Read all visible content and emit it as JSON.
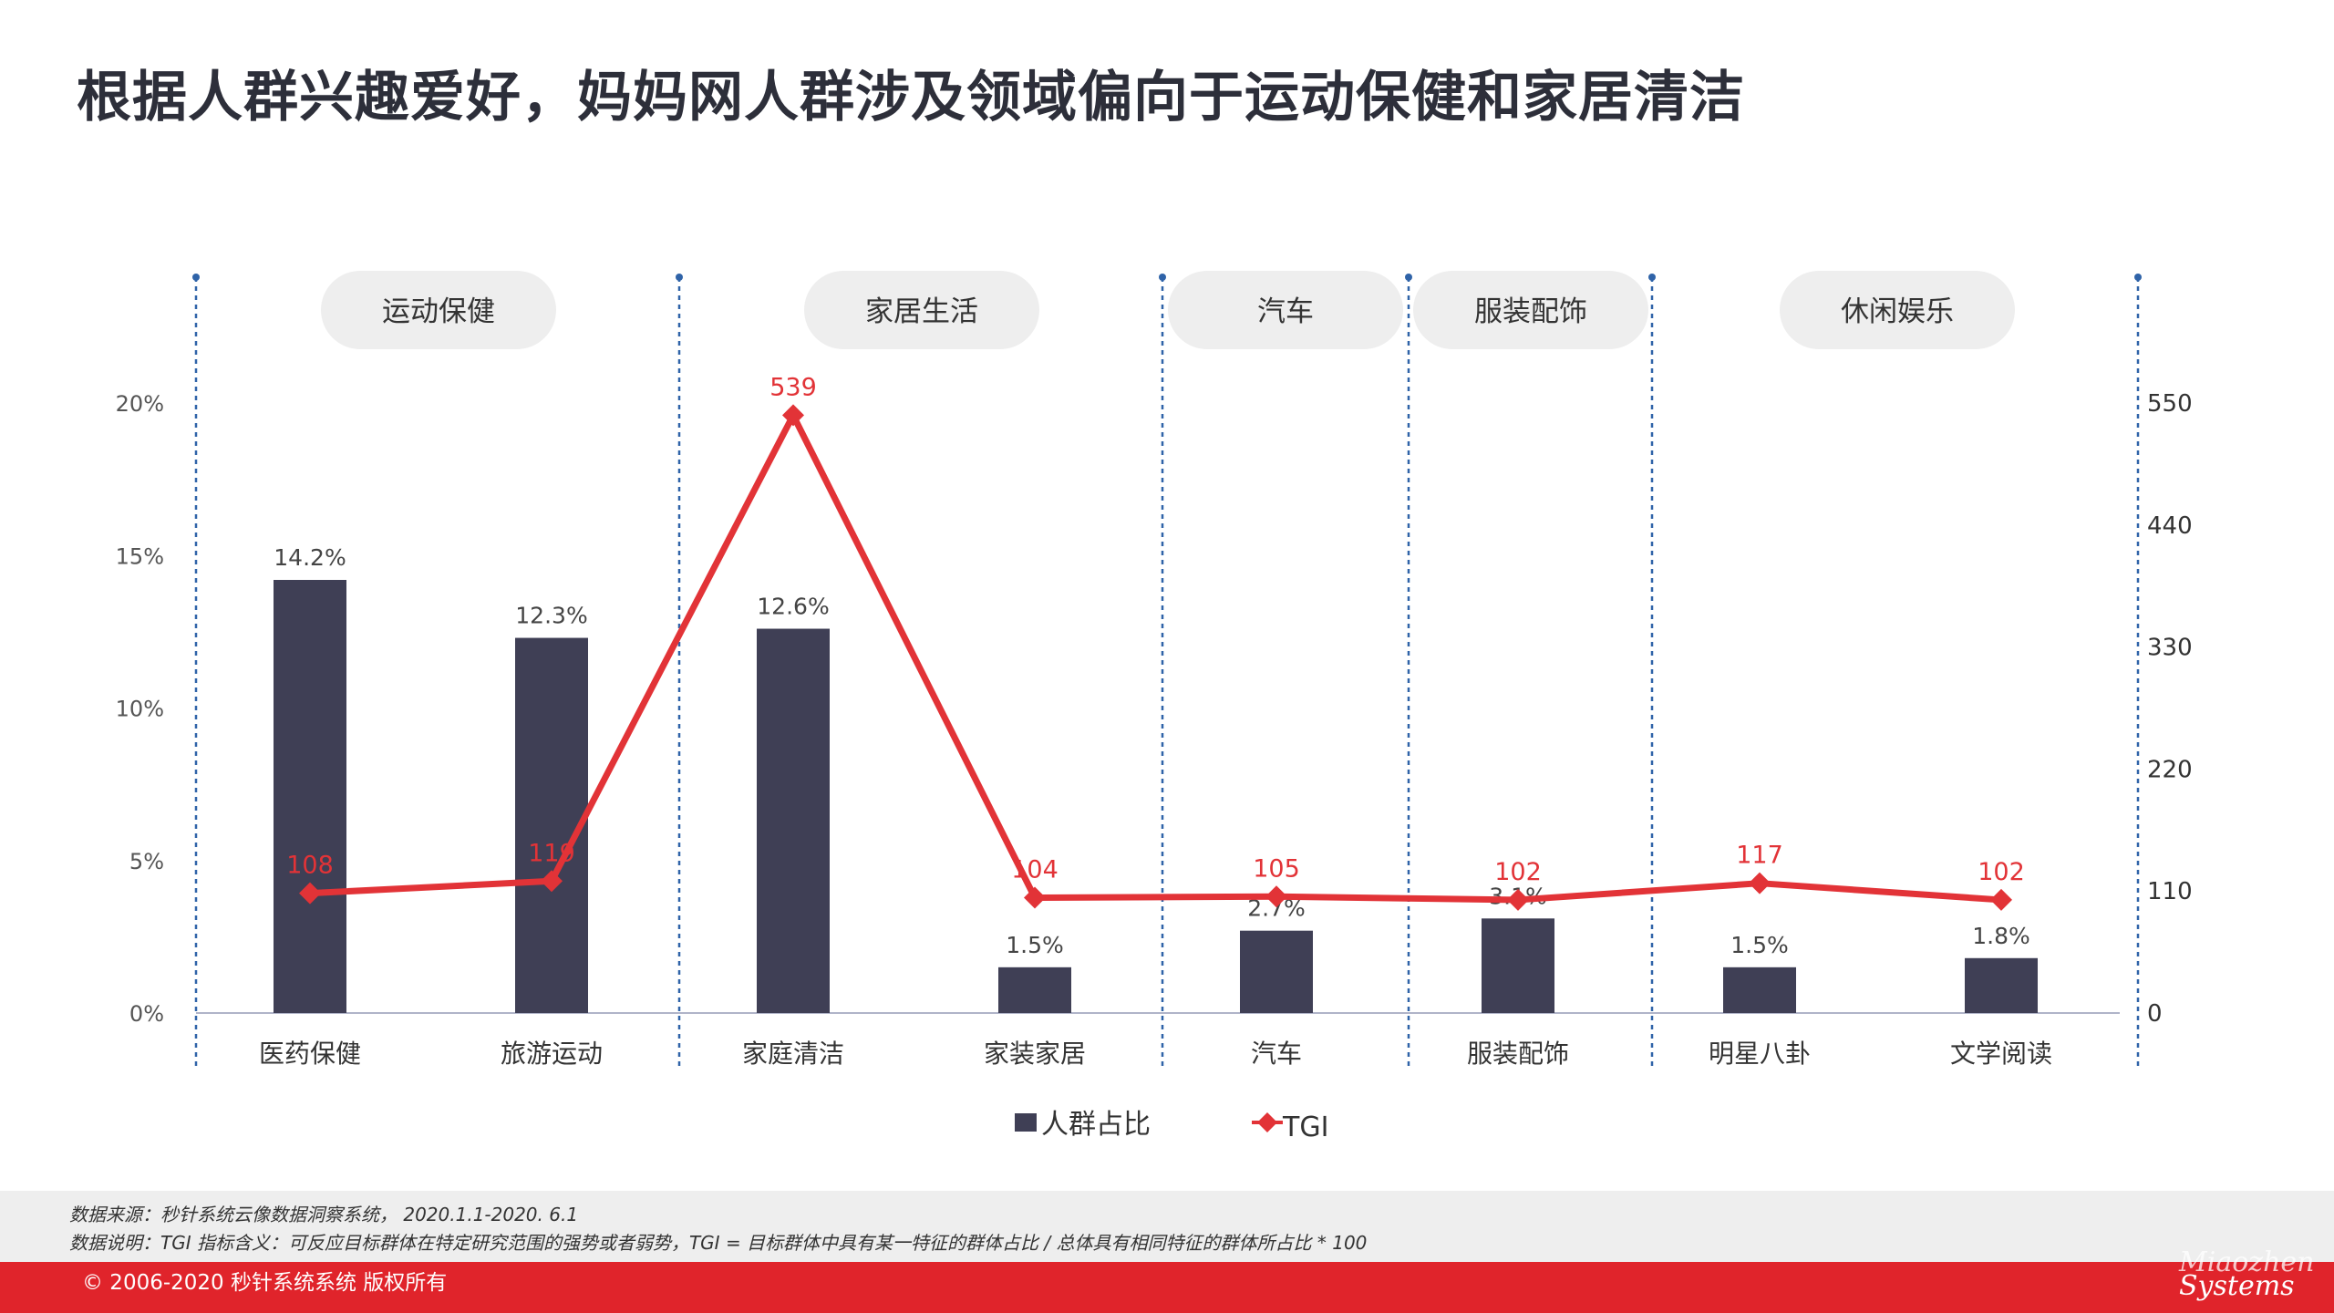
{
  "title": "根据人群兴趣爱好，妈妈网人群涉及领域偏向于运动保健和家居清洁",
  "footer": {
    "source": "数据来源：秒针系统云像数据洞察系统， 2020.1.1-2020. 6.1",
    "note": "数据说明：TGI 指标含义：可反应目标群体在特定研究范围的强势或者弱势，TGI = 目标群体中具有某一特征的群体占比 / 总体具有相同特征的群体所占比 * 100",
    "copyright": "© 2006-2020 秒针系统系统 版权所有",
    "brand_line1": "Miaozhen",
    "brand_line2": "Systems"
  },
  "colors": {
    "bar": "#3f3f55",
    "line": "#e23337",
    "divider": "#2f63a8",
    "pill": "#eeeeee",
    "axis_text": "#555555"
  },
  "chart_data": {
    "type": "bar+line",
    "groups": [
      {
        "label": "运动保健",
        "categories": [
          "医药保健",
          "旅游运动"
        ]
      },
      {
        "label": "家居生活",
        "categories": [
          "家庭清洁",
          "家装家居"
        ]
      },
      {
        "label": "汽车",
        "categories": [
          "汽车"
        ]
      },
      {
        "label": "服装配饰",
        "categories": [
          "服装配饰"
        ]
      },
      {
        "label": "休闲娱乐",
        "categories": [
          "明星八卦",
          "文学阅读"
        ]
      }
    ],
    "categories": [
      "医药保健",
      "旅游运动",
      "家庭清洁",
      "家装家居",
      "汽车",
      "服装配饰",
      "明星八卦",
      "文学阅读"
    ],
    "series": [
      {
        "name": "人群占比",
        "type": "bar",
        "axis": "left",
        "values": [
          14.2,
          12.3,
          12.6,
          1.5,
          2.7,
          3.1,
          1.5,
          1.8
        ],
        "labels": [
          "14.2%",
          "12.3%",
          "12.6%",
          "1.5%",
          "2.7%",
          "3.1%",
          "1.5%",
          "1.8%"
        ]
      },
      {
        "name": "TGI",
        "type": "line",
        "axis": "right",
        "values": [
          108,
          119,
          539,
          104,
          105,
          102,
          117,
          102
        ],
        "labels": [
          "108",
          "119",
          "539",
          "104",
          "105",
          "102",
          "117",
          "102"
        ]
      }
    ],
    "y_left": {
      "min": 0,
      "max": 20,
      "ticks": [
        0,
        5,
        10,
        15,
        20
      ],
      "tick_labels": [
        "0%",
        "5%",
        "10%",
        "15%",
        "20%"
      ]
    },
    "y_right": {
      "min": 0,
      "max": 550,
      "ticks": [
        0,
        110,
        220,
        330,
        440,
        550
      ],
      "tick_labels": [
        "0",
        "110",
        "220",
        "330",
        "440",
        "550"
      ]
    },
    "legend": "bottom-center",
    "grid": false
  }
}
